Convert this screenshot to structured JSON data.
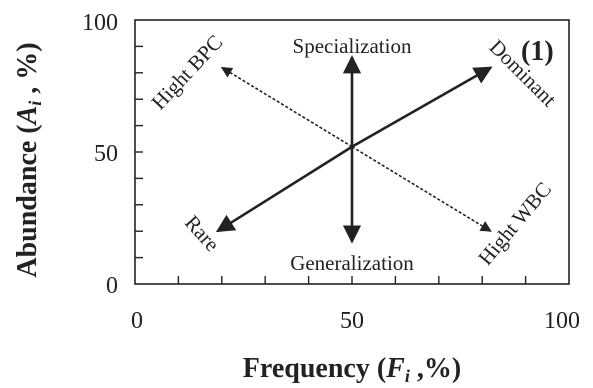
{
  "panel_label": "(1)",
  "axes": {
    "x_label_main": "Frequency (",
    "x_label_var": "F",
    "x_label_sub": "i",
    "x_label_end": " ,%)",
    "y_label_main": "Abundance (",
    "y_label_var": "A",
    "y_label_sub": "i",
    "y_label_end": " , %)",
    "x_ticks": [
      "0",
      "50",
      "100"
    ],
    "y_ticks": [
      "0",
      "50",
      "100"
    ],
    "x_range": [
      0,
      100
    ],
    "y_range": [
      0,
      100
    ]
  },
  "labels": {
    "top": "Specialization",
    "bottom": "Generalization",
    "upper_left": "Hight BPC",
    "upper_right": "Dominant",
    "lower_left": "Rare",
    "lower_right": "Hight WBC"
  },
  "arrows": [
    {
      "name": "arrow-specialization",
      "from": [
        50,
        52
      ],
      "to": [
        50,
        86
      ],
      "style": "solid"
    },
    {
      "name": "arrow-generalization",
      "from": [
        50,
        52
      ],
      "to": [
        50,
        16
      ],
      "style": "solid"
    },
    {
      "name": "arrow-dominant",
      "from": [
        50,
        52
      ],
      "to": [
        82,
        82
      ],
      "style": "solid"
    },
    {
      "name": "arrow-rare",
      "from": [
        50,
        52
      ],
      "to": [
        19,
        20
      ],
      "style": "solid"
    },
    {
      "name": "arrow-hight-bpc",
      "from": [
        50,
        52
      ],
      "to": [
        20,
        82
      ],
      "style": "dashed"
    },
    {
      "name": "arrow-hight-wbc",
      "from": [
        50,
        52
      ],
      "to": [
        82,
        20
      ],
      "style": "dashed"
    }
  ],
  "colors": {
    "ink": "#222222",
    "background": "#ffffff"
  }
}
